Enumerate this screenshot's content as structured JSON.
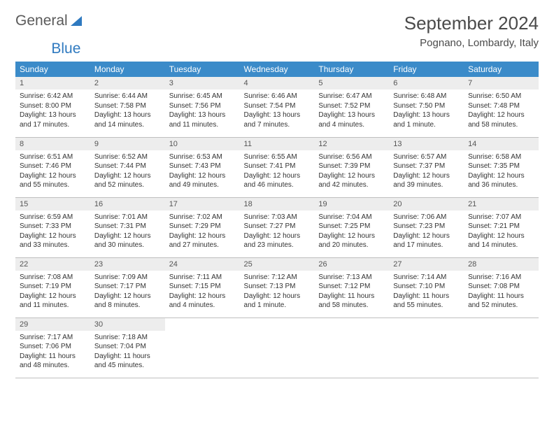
{
  "brand": {
    "part1": "General",
    "part2": "Blue"
  },
  "title": "September 2024",
  "location": "Pognano, Lombardy, Italy",
  "colors": {
    "header_bg": "#3b8bc9",
    "daynum_bg": "#ededed",
    "brand_blue": "#2f7ac0"
  },
  "weekdays": [
    "Sunday",
    "Monday",
    "Tuesday",
    "Wednesday",
    "Thursday",
    "Friday",
    "Saturday"
  ],
  "weeks": [
    [
      {
        "n": "1",
        "sr": "Sunrise: 6:42 AM",
        "ss": "Sunset: 8:00 PM",
        "dl": "Daylight: 13 hours and 17 minutes."
      },
      {
        "n": "2",
        "sr": "Sunrise: 6:44 AM",
        "ss": "Sunset: 7:58 PM",
        "dl": "Daylight: 13 hours and 14 minutes."
      },
      {
        "n": "3",
        "sr": "Sunrise: 6:45 AM",
        "ss": "Sunset: 7:56 PM",
        "dl": "Daylight: 13 hours and 11 minutes."
      },
      {
        "n": "4",
        "sr": "Sunrise: 6:46 AM",
        "ss": "Sunset: 7:54 PM",
        "dl": "Daylight: 13 hours and 7 minutes."
      },
      {
        "n": "5",
        "sr": "Sunrise: 6:47 AM",
        "ss": "Sunset: 7:52 PM",
        "dl": "Daylight: 13 hours and 4 minutes."
      },
      {
        "n": "6",
        "sr": "Sunrise: 6:48 AM",
        "ss": "Sunset: 7:50 PM",
        "dl": "Daylight: 13 hours and 1 minute."
      },
      {
        "n": "7",
        "sr": "Sunrise: 6:50 AM",
        "ss": "Sunset: 7:48 PM",
        "dl": "Daylight: 12 hours and 58 minutes."
      }
    ],
    [
      {
        "n": "8",
        "sr": "Sunrise: 6:51 AM",
        "ss": "Sunset: 7:46 PM",
        "dl": "Daylight: 12 hours and 55 minutes."
      },
      {
        "n": "9",
        "sr": "Sunrise: 6:52 AM",
        "ss": "Sunset: 7:44 PM",
        "dl": "Daylight: 12 hours and 52 minutes."
      },
      {
        "n": "10",
        "sr": "Sunrise: 6:53 AM",
        "ss": "Sunset: 7:43 PM",
        "dl": "Daylight: 12 hours and 49 minutes."
      },
      {
        "n": "11",
        "sr": "Sunrise: 6:55 AM",
        "ss": "Sunset: 7:41 PM",
        "dl": "Daylight: 12 hours and 46 minutes."
      },
      {
        "n": "12",
        "sr": "Sunrise: 6:56 AM",
        "ss": "Sunset: 7:39 PM",
        "dl": "Daylight: 12 hours and 42 minutes."
      },
      {
        "n": "13",
        "sr": "Sunrise: 6:57 AM",
        "ss": "Sunset: 7:37 PM",
        "dl": "Daylight: 12 hours and 39 minutes."
      },
      {
        "n": "14",
        "sr": "Sunrise: 6:58 AM",
        "ss": "Sunset: 7:35 PM",
        "dl": "Daylight: 12 hours and 36 minutes."
      }
    ],
    [
      {
        "n": "15",
        "sr": "Sunrise: 6:59 AM",
        "ss": "Sunset: 7:33 PM",
        "dl": "Daylight: 12 hours and 33 minutes."
      },
      {
        "n": "16",
        "sr": "Sunrise: 7:01 AM",
        "ss": "Sunset: 7:31 PM",
        "dl": "Daylight: 12 hours and 30 minutes."
      },
      {
        "n": "17",
        "sr": "Sunrise: 7:02 AM",
        "ss": "Sunset: 7:29 PM",
        "dl": "Daylight: 12 hours and 27 minutes."
      },
      {
        "n": "18",
        "sr": "Sunrise: 7:03 AM",
        "ss": "Sunset: 7:27 PM",
        "dl": "Daylight: 12 hours and 23 minutes."
      },
      {
        "n": "19",
        "sr": "Sunrise: 7:04 AM",
        "ss": "Sunset: 7:25 PM",
        "dl": "Daylight: 12 hours and 20 minutes."
      },
      {
        "n": "20",
        "sr": "Sunrise: 7:06 AM",
        "ss": "Sunset: 7:23 PM",
        "dl": "Daylight: 12 hours and 17 minutes."
      },
      {
        "n": "21",
        "sr": "Sunrise: 7:07 AM",
        "ss": "Sunset: 7:21 PM",
        "dl": "Daylight: 12 hours and 14 minutes."
      }
    ],
    [
      {
        "n": "22",
        "sr": "Sunrise: 7:08 AM",
        "ss": "Sunset: 7:19 PM",
        "dl": "Daylight: 12 hours and 11 minutes."
      },
      {
        "n": "23",
        "sr": "Sunrise: 7:09 AM",
        "ss": "Sunset: 7:17 PM",
        "dl": "Daylight: 12 hours and 8 minutes."
      },
      {
        "n": "24",
        "sr": "Sunrise: 7:11 AM",
        "ss": "Sunset: 7:15 PM",
        "dl": "Daylight: 12 hours and 4 minutes."
      },
      {
        "n": "25",
        "sr": "Sunrise: 7:12 AM",
        "ss": "Sunset: 7:13 PM",
        "dl": "Daylight: 12 hours and 1 minute."
      },
      {
        "n": "26",
        "sr": "Sunrise: 7:13 AM",
        "ss": "Sunset: 7:12 PM",
        "dl": "Daylight: 11 hours and 58 minutes."
      },
      {
        "n": "27",
        "sr": "Sunrise: 7:14 AM",
        "ss": "Sunset: 7:10 PM",
        "dl": "Daylight: 11 hours and 55 minutes."
      },
      {
        "n": "28",
        "sr": "Sunrise: 7:16 AM",
        "ss": "Sunset: 7:08 PM",
        "dl": "Daylight: 11 hours and 52 minutes."
      }
    ],
    [
      {
        "n": "29",
        "sr": "Sunrise: 7:17 AM",
        "ss": "Sunset: 7:06 PM",
        "dl": "Daylight: 11 hours and 48 minutes."
      },
      {
        "n": "30",
        "sr": "Sunrise: 7:18 AM",
        "ss": "Sunset: 7:04 PM",
        "dl": "Daylight: 11 hours and 45 minutes."
      },
      null,
      null,
      null,
      null,
      null
    ]
  ]
}
